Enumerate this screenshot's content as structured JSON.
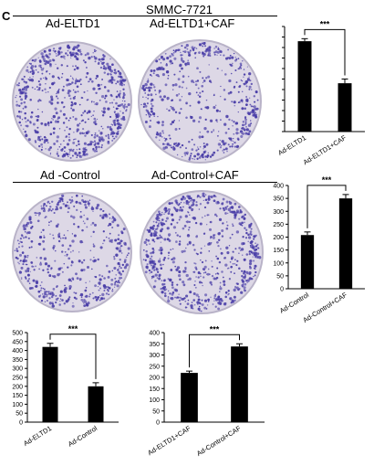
{
  "figure": {
    "panel_letter": "C",
    "cell_line": "SMMC-7721",
    "plates": [
      {
        "label": "Ad-ELTD1",
        "density": 0.85,
        "colonies": 430
      },
      {
        "label": "Ad-ELTD1+CAF",
        "density": 0.55,
        "colonies": 230
      },
      {
        "label": "Ad -Control",
        "density": 0.5,
        "colonies": 208
      },
      {
        "label": "Ad-Control+CAF",
        "density": 0.85,
        "colonies": 350
      }
    ]
  },
  "colors": {
    "bar": "#000000",
    "plate_bg": "#ddd8e6",
    "colony": "#4b3fa8",
    "rim": "#b9b3c8"
  },
  "chart_data": [
    {
      "type": "bar",
      "categories": [
        "Ad-ELTD1",
        "Ad-ELTD1+CAF"
      ],
      "values": [
        430,
        230
      ],
      "errors": [
        12,
        20
      ],
      "ylim": [
        0,
        500
      ],
      "ticks": [
        0,
        50,
        100,
        150,
        200,
        250,
        300,
        350,
        400,
        450,
        500
      ],
      "show_tick_labels": false,
      "significance": "***",
      "title": "",
      "xlabel": "",
      "ylabel": ""
    },
    {
      "type": "bar",
      "categories": [
        "Ad-Control",
        "Ad-Control+CAF"
      ],
      "values": [
        208,
        350
      ],
      "errors": [
        12,
        15
      ],
      "ylim": [
        0,
        400
      ],
      "ticks": [
        0,
        50,
        100,
        150,
        200,
        250,
        300,
        350,
        400
      ],
      "show_tick_labels": true,
      "significance": "***",
      "title": "",
      "xlabel": "",
      "ylabel": ""
    },
    {
      "type": "bar",
      "categories": [
        "Ad-ELTD1",
        "Ad-Control"
      ],
      "values": [
        420,
        200
      ],
      "errors": [
        20,
        20
      ],
      "ylim": [
        0,
        500
      ],
      "ticks": [
        0,
        50,
        100,
        150,
        200,
        250,
        300,
        350,
        400,
        450,
        500
      ],
      "show_tick_labels": true,
      "significance": "***",
      "title": "",
      "xlabel": "",
      "ylabel": ""
    },
    {
      "type": "bar",
      "categories": [
        "Ad-ELTD1+CAF",
        "Ad-Control+CAF"
      ],
      "values": [
        220,
        338
      ],
      "errors": [
        8,
        12
      ],
      "ylim": [
        0,
        400
      ],
      "ticks": [
        0,
        50,
        100,
        150,
        200,
        250,
        300,
        350,
        400
      ],
      "show_tick_labels": true,
      "significance": "***",
      "title": "",
      "xlabel": "",
      "ylabel": ""
    }
  ]
}
